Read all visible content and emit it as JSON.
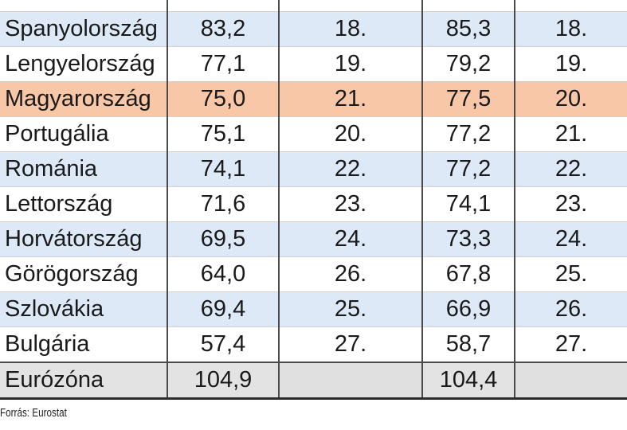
{
  "table": {
    "rows": [
      {
        "country": "Spanyolország",
        "v1": "83,2",
        "r1": "18.",
        "v2": "85,3",
        "r2": "18.",
        "style": "blue"
      },
      {
        "country": "Lengyelország",
        "v1": "77,1",
        "r1": "19.",
        "v2": "79,2",
        "r2": "19.",
        "style": "white"
      },
      {
        "country": "Magyarország",
        "v1": "75,0",
        "r1": "21.",
        "v2": "77,5",
        "r2": "20.",
        "style": "highlight"
      },
      {
        "country": "Portugália",
        "v1": "75,1",
        "r1": "20.",
        "v2": "77,2",
        "r2": "21.",
        "style": "white"
      },
      {
        "country": "Románia",
        "v1": "74,1",
        "r1": "22.",
        "v2": "77,2",
        "r2": "22.",
        "style": "blue"
      },
      {
        "country": "Lettország",
        "v1": "71,6",
        "r1": "23.",
        "v2": "74,1",
        "r2": "23.",
        "style": "white"
      },
      {
        "country": "Horvátország",
        "v1": "69,5",
        "r1": "24.",
        "v2": "73,3",
        "r2": "24.",
        "style": "blue"
      },
      {
        "country": "Görögország",
        "v1": "64,0",
        "r1": "26.",
        "v2": "67,8",
        "r2": "25.",
        "style": "white"
      },
      {
        "country": "Szlovákia",
        "v1": "69,4",
        "r1": "25.",
        "v2": "66,9",
        "r2": "26.",
        "style": "blue"
      },
      {
        "country": "Bulgária",
        "v1": "57,4",
        "r1": "27.",
        "v2": "58,7",
        "r2": "27.",
        "style": "white"
      }
    ],
    "total": {
      "country": "Eurózóna",
      "v1": "104,9",
      "v2": "104,4"
    }
  },
  "source": "Forrás: Eurostat"
}
